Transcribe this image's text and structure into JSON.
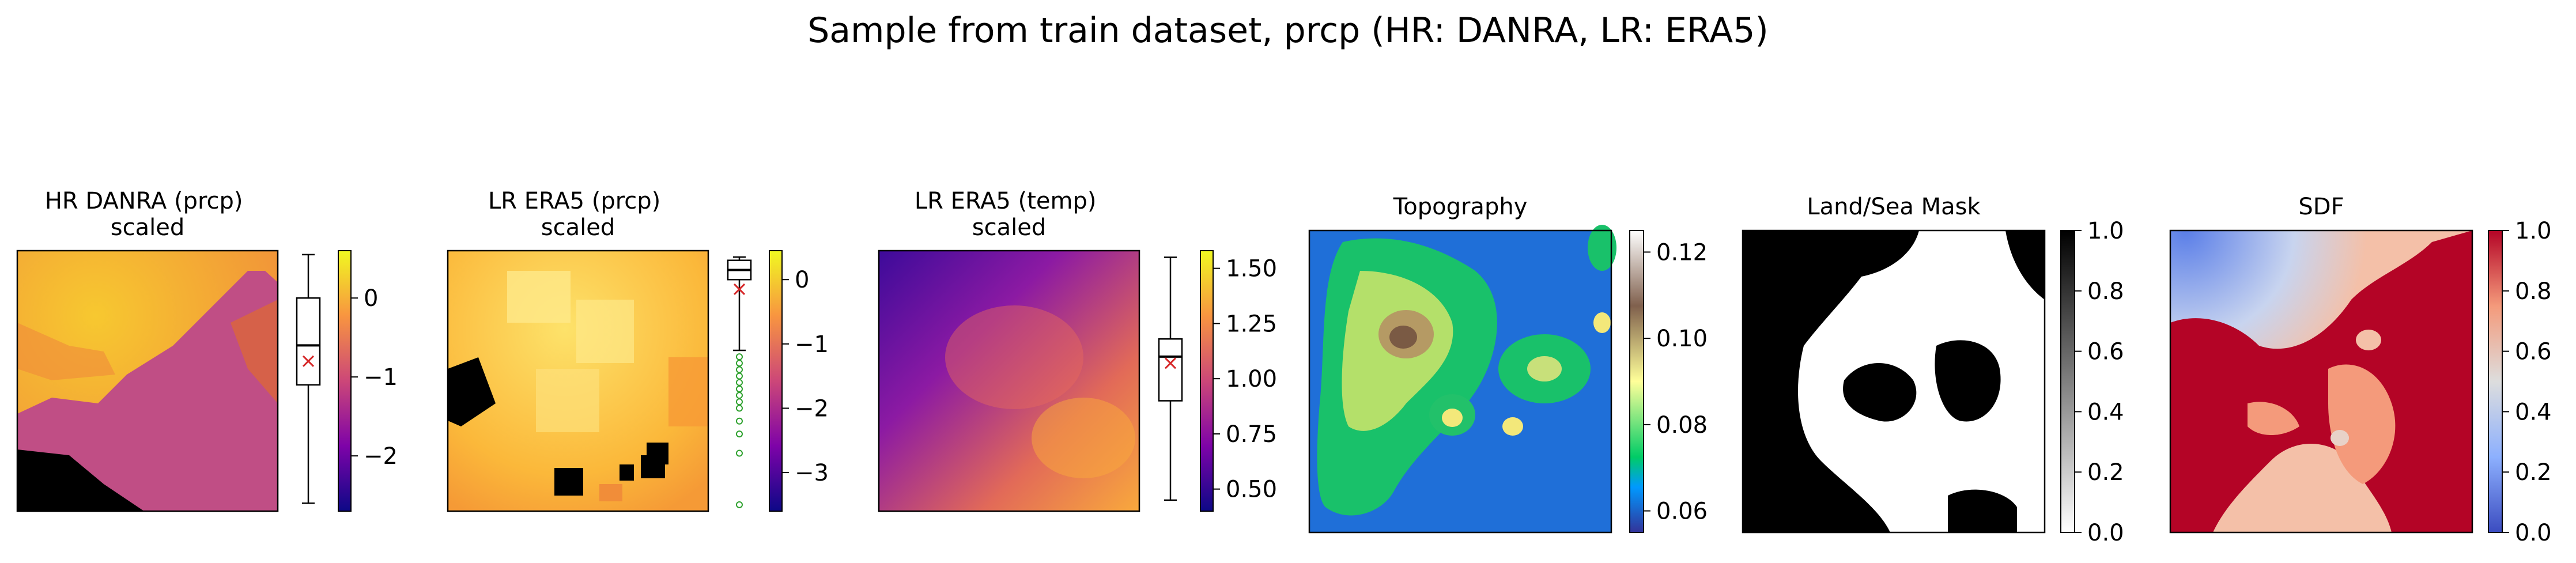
{
  "figure": {
    "suptitle": "Sample from train dataset, prcp (HR: DANRA, LR: ERA5)"
  },
  "chart_data": [
    {
      "type": "heatmap",
      "title": "HR DANRA (prcp)\nscaled",
      "colormap": "plasma",
      "colorbar": {
        "range": [
          -2.7,
          0.6
        ],
        "ticks": [
          0,
          -1,
          -2
        ]
      },
      "boxplot": {
        "min": -2.6,
        "q1": -1.1,
        "median": -0.6,
        "q3": 0.0,
        "max": 0.55,
        "mean": -0.8,
        "mean_color": "#d62728",
        "outliers": []
      }
    },
    {
      "type": "heatmap",
      "title": "LR ERA5 (prcp)\nscaled",
      "colormap": "plasma",
      "colorbar": {
        "range": [
          -3.6,
          0.45
        ],
        "ticks": [
          0,
          -1,
          -2,
          -3
        ]
      },
      "boxplot": {
        "min": -1.1,
        "q1": 0.0,
        "median": 0.15,
        "q3": 0.3,
        "max": 0.35,
        "mean": -0.15,
        "mean_color": "#d62728",
        "outliers": [
          -1.2,
          -1.3,
          -1.4,
          -1.5,
          -1.6,
          -1.7,
          -1.8,
          -1.9,
          -2.0,
          -2.2,
          -2.4,
          -2.7,
          -3.5
        ],
        "outlier_color": "#2ca02c"
      }
    },
    {
      "type": "heatmap",
      "title": "LR ERA5 (temp)\nscaled",
      "colormap": "plasma",
      "colorbar": {
        "range": [
          0.4,
          1.58
        ],
        "ticks": [
          0.5,
          0.75,
          1.0,
          1.25,
          1.5
        ],
        "tick_labels": [
          "0.50",
          "0.75",
          "1.00",
          "1.25",
          "1.50"
        ]
      },
      "boxplot": {
        "min": 0.45,
        "q1": 0.9,
        "median": 1.1,
        "q3": 1.18,
        "max": 1.55,
        "mean": 1.07,
        "mean_color": "#d62728",
        "outliers": []
      }
    },
    {
      "type": "heatmap",
      "title": "Topography",
      "colormap": "terrain",
      "colorbar": {
        "range": [
          0.055,
          0.125
        ],
        "ticks": [
          0.06,
          0.08,
          0.1,
          0.12
        ],
        "tick_labels": [
          "0.06",
          "0.08",
          "0.10",
          "0.12"
        ]
      }
    },
    {
      "type": "heatmap",
      "title": "Land/Sea Mask",
      "colormap": "binary",
      "colorbar": {
        "range": [
          0.0,
          1.0
        ],
        "ticks": [
          0.0,
          0.2,
          0.4,
          0.6,
          0.8,
          1.0
        ],
        "tick_labels": [
          "0.0",
          "0.2",
          "0.4",
          "0.6",
          "0.8",
          "1.0"
        ]
      }
    },
    {
      "type": "heatmap",
      "title": "SDF",
      "colormap": "coolwarm",
      "colorbar": {
        "range": [
          0.0,
          1.0
        ],
        "ticks": [
          0.0,
          0.2,
          0.4,
          0.6,
          0.8,
          1.0
        ],
        "tick_labels": [
          "0.0",
          "0.2",
          "0.4",
          "0.6",
          "0.8",
          "1.0"
        ]
      }
    }
  ]
}
